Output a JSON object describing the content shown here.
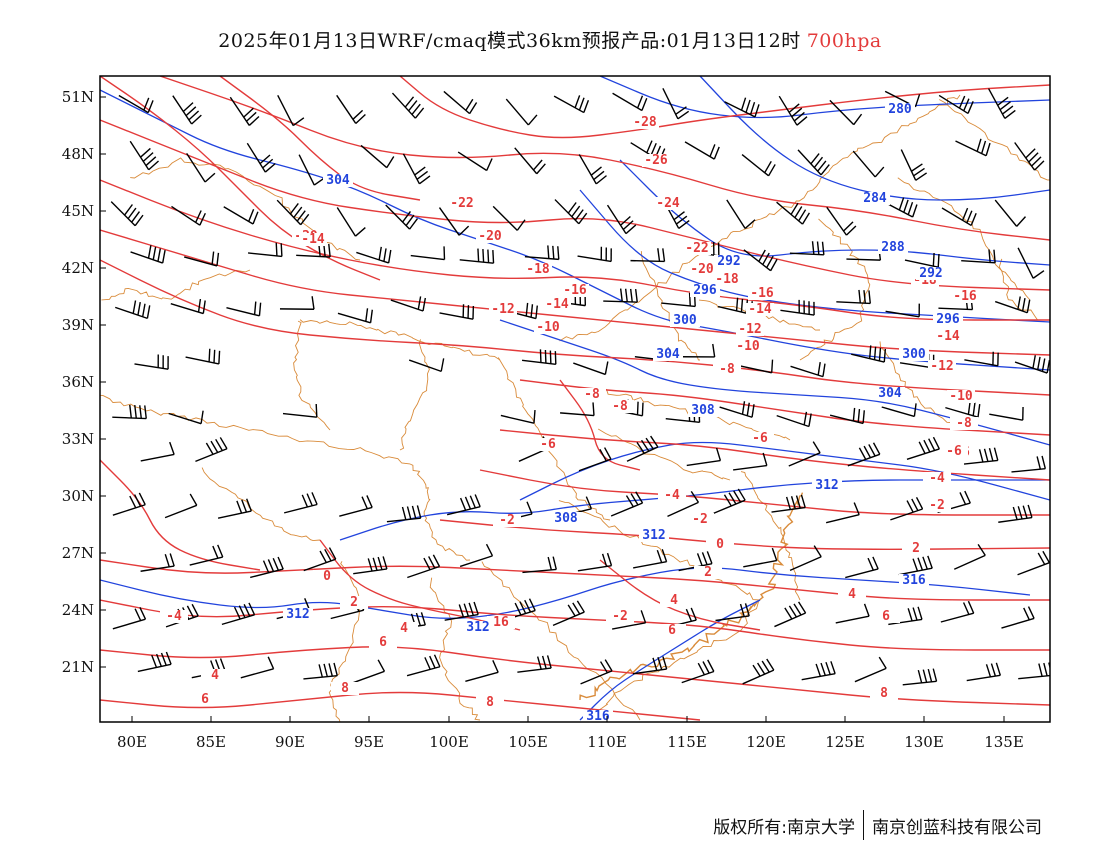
{
  "title": {
    "main": "2025年01月13日WRF/cmaq模式36km预报产品:01月13日12时",
    "level": "700hpa"
  },
  "map": {
    "lon_ticks": [
      "80E",
      "85E",
      "90E",
      "95E",
      "100E",
      "105E",
      "110E",
      "115E",
      "120E",
      "125E",
      "130E",
      "135E"
    ],
    "lat_ticks": [
      "51N",
      "48N",
      "45N",
      "42N",
      "39N",
      "36N",
      "33N",
      "30N",
      "27N",
      "24N",
      "21N"
    ],
    "colors": {
      "temperature": "#e33b3b",
      "height": "#2244dd",
      "border": "#d98b3a",
      "wind": "#000000"
    },
    "temperature_labels": [
      "-28",
      "-26",
      "-24",
      "-22",
      "-22",
      "-20",
      "-20",
      "-20",
      "-18",
      "-18",
      "-18",
      "-16",
      "-16",
      "-16",
      "-14",
      "-14",
      "-14",
      "-14",
      "-12",
      "-12",
      "-12",
      "-10",
      "-10",
      "-10",
      "-8",
      "-8",
      "-8",
      "-8",
      "-6",
      "-6",
      "-6",
      "-4",
      "-4",
      "-2",
      "-2",
      "-2",
      "-2",
      "0",
      "0",
      "2",
      "2",
      "2",
      "4",
      "4",
      "4",
      "4",
      "6",
      "6",
      "6",
      "6",
      "8",
      "8",
      "8",
      "16",
      "-4",
      "-6"
    ],
    "height_labels": [
      "280",
      "284",
      "288",
      "292",
      "292",
      "296",
      "296",
      "300",
      "300",
      "304",
      "304",
      "304",
      "308",
      "308",
      "312",
      "312",
      "312",
      "312",
      "316",
      "316"
    ]
  },
  "footer": {
    "copyright": "版权所有:南京大学",
    "company": "南京创蓝科技有限公司"
  }
}
